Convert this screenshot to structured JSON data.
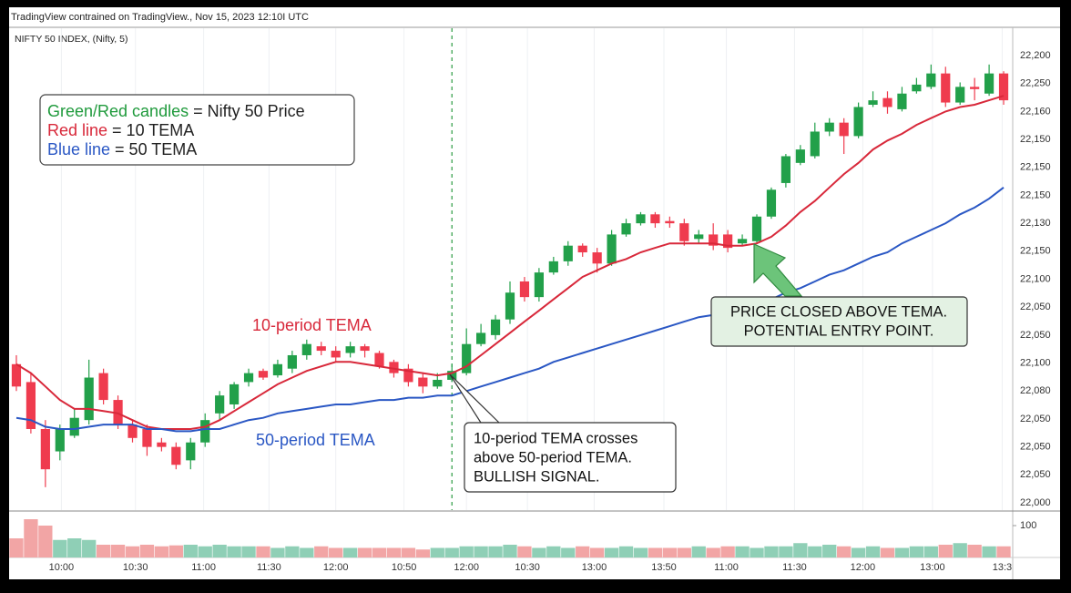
{
  "chart_data": {
    "type": "candlestick",
    "header": "TradingView contrained on TradingView., Nov 15, 2023 12:10I UTC",
    "symbol": "NIFTY 50 INDEX, (Nifty, 5)",
    "ylim": [
      22000,
      22200
    ],
    "price_axis_labels": [
      "22,200",
      "22,250",
      "22,160",
      "22,150",
      "22,150",
      "22,150",
      "22,130",
      "22,150",
      "22,100",
      "22,050",
      "22,050",
      "22,100",
      "22,080",
      "22,050",
      "22,050",
      "22,050",
      "22,000"
    ],
    "xlim": [
      -0.5,
      68.5
    ],
    "xticks": [
      {
        "value": 3.1,
        "label": "10:00"
      },
      {
        "value": 8.2,
        "label": "10:30"
      },
      {
        "value": 12.9,
        "label": "11:00"
      },
      {
        "value": 17.4,
        "label": "11:30"
      },
      {
        "value": 22,
        "label": "12:00"
      },
      {
        "value": 26.7,
        "label": "10:50"
      },
      {
        "value": 31,
        "label": "12:00"
      },
      {
        "value": 35.2,
        "label": "10:30"
      },
      {
        "value": 39.8,
        "label": "13:00"
      },
      {
        "value": 44.6,
        "label": "13:50"
      },
      {
        "value": 48.9,
        "label": "11:00"
      },
      {
        "value": 53.6,
        "label": "11:30"
      },
      {
        "value": 58.3,
        "label": "12:00"
      },
      {
        "value": 63.1,
        "label": "13:00"
      },
      {
        "value": 67.9,
        "label": "13:3"
      }
    ],
    "up_color": "#22a04a",
    "down_color": "#ef3b4e",
    "candles": {
      "open": [
        22062,
        22054,
        22033,
        22023,
        22030,
        22037,
        22058,
        22046,
        22035,
        22033,
        22027,
        22025,
        22019,
        22027,
        22040,
        22044,
        22054,
        22059,
        22057,
        22060,
        22066,
        22070,
        22068,
        22067,
        22070,
        22067,
        22063,
        22060,
        22056,
        22052,
        22055,
        22058,
        22071,
        22075,
        22082,
        22099,
        22092,
        22103,
        22108,
        22115,
        22112,
        22107,
        22120,
        22125,
        22129,
        22126,
        22125,
        22118,
        22120,
        22120,
        22116,
        22117,
        22128,
        22143,
        22152,
        22155,
        22166,
        22170,
        22164,
        22178,
        22181,
        22176,
        22184,
        22186,
        22192,
        22179,
        22186,
        22183,
        22192
      ],
      "high": [
        22066,
        22058,
        22037,
        22035,
        22042,
        22064,
        22060,
        22048,
        22037,
        22035,
        22029,
        22027,
        22029,
        22040,
        22050,
        22054,
        22060,
        22060,
        22064,
        22068,
        22073,
        22072,
        22070,
        22072,
        22071,
        22068,
        22064,
        22062,
        22058,
        22058,
        22062,
        22078,
        22080,
        22084,
        22099,
        22101,
        22105,
        22110,
        22117,
        22116,
        22114,
        22122,
        22127,
        22130,
        22130,
        22128,
        22127,
        22122,
        22125,
        22122,
        22120,
        22129,
        22141,
        22156,
        22160,
        22170,
        22172,
        22172,
        22179,
        22184,
        22184,
        22186,
        22190,
        22196,
        22195,
        22188,
        22190,
        22196,
        22193
      ],
      "low": [
        22050,
        22031,
        22007,
        22019,
        22029,
        22035,
        22044,
        22033,
        22027,
        22021,
        22023,
        22015,
        22015,
        22025,
        22037,
        22042,
        22052,
        22055,
        22056,
        22058,
        22064,
        22066,
        22063,
        22065,
        22065,
        22060,
        22056,
        22052,
        22049,
        22051,
        22054,
        22057,
        22070,
        22073,
        22080,
        22090,
        22090,
        22102,
        22106,
        22110,
        22103,
        22106,
        22119,
        22124,
        22123,
        22123,
        22115,
        22116,
        22113,
        22112,
        22115,
        22116,
        22127,
        22141,
        22151,
        22154,
        22164,
        22156,
        22163,
        22177,
        22174,
        22175,
        22183,
        22185,
        22177,
        22178,
        22180,
        22182,
        22178
      ],
      "close": [
        22052,
        22033,
        22015,
        22033,
        22038,
        22056,
        22046,
        22035,
        22029,
        22025,
        22025,
        22017,
        22027,
        22037,
        22048,
        22053,
        22058,
        22056,
        22062,
        22066,
        22071,
        22068,
        22065,
        22070,
        22068,
        22061,
        22058,
        22054,
        22052,
        22055,
        22059,
        22071,
        22076,
        22082,
        22094,
        22092,
        22103,
        22108,
        22115,
        22112,
        22107,
        22120,
        22125,
        22129,
        22125,
        22125,
        22117,
        22120,
        22115,
        22114,
        22118,
        22128,
        22140,
        22155,
        22158,
        22166,
        22170,
        22164,
        22177,
        22180,
        22177,
        22183,
        22187,
        22192,
        22179,
        22186,
        22185,
        22192,
        22180
      ]
    },
    "lines": [
      {
        "name": "10-period TEMA",
        "color": "#d8283a",
        "values": [
          22062,
          22058,
          22052,
          22046,
          22042,
          22042,
          22041,
          22040,
          22037,
          22034,
          22033,
          22033,
          22033,
          22034,
          22037,
          22041,
          22045,
          22049,
          22053,
          22056,
          22059,
          22061,
          22063,
          22063,
          22062,
          22061,
          22060,
          22059,
          22058,
          22057,
          22058,
          22061,
          22066,
          22071,
          22076,
          22081,
          22086,
          22091,
          22096,
          22101,
          22104,
          22107,
          22109,
          22112,
          22114,
          22116,
          22116,
          22116,
          22116,
          22115,
          22115,
          22116,
          22119,
          22124,
          22130,
          22135,
          22141,
          22147,
          22152,
          22158,
          22162,
          22165,
          22169,
          22172,
          22175,
          22177,
          22178,
          22180,
          22182
        ]
      },
      {
        "name": "50-period TEMA",
        "color": "#2a57c4",
        "values": [
          22038,
          22037,
          22034,
          22033,
          22033,
          22034,
          22035,
          22035,
          22035,
          22033,
          22033,
          22032,
          22032,
          22033,
          22033,
          22035,
          22037,
          22038,
          22040,
          22041,
          22042,
          22043,
          22044,
          22044,
          22045,
          22046,
          22046,
          22047,
          22047,
          22048,
          22048,
          22050,
          22052,
          22054,
          22056,
          22058,
          22060,
          22063,
          22065,
          22067,
          22069,
          22071,
          22073,
          22075,
          22077,
          22079,
          22081,
          22083,
          22084,
          22086,
          22088,
          22089,
          22091,
          22094,
          22096,
          22099,
          22102,
          22104,
          22107,
          22110,
          22112,
          22116,
          22119,
          22122,
          22125,
          22129,
          22132,
          22136,
          22141
        ]
      }
    ],
    "crossover_x": 30,
    "volume": [
      60,
      120,
      100,
      55,
      60,
      55,
      40,
      40,
      35,
      40,
      35,
      38,
      40,
      35,
      40,
      35,
      35,
      35,
      30,
      35,
      30,
      35,
      30,
      30,
      30,
      30,
      30,
      30,
      25,
      30,
      30,
      35,
      35,
      35,
      40,
      35,
      30,
      35,
      30,
      35,
      30,
      30,
      35,
      30,
      30,
      30,
      30,
      35,
      30,
      35,
      35,
      30,
      35,
      35,
      45,
      35,
      40,
      35,
      30,
      35,
      30,
      30,
      35,
      35,
      40,
      45,
      40,
      35,
      35
    ],
    "volume_ylim": [
      0,
      140
    ],
    "volume_yticks": [
      100
    ],
    "volume_up_color": "#8fcfb6",
    "volume_down_color": "#f2a5a5",
    "legend": [
      {
        "key": "Green/Red candles",
        "text": "= Nifty 50 Price",
        "color": "#1f9a3c"
      },
      {
        "key": "Red line",
        "text": "= 10 TEMA",
        "color": "#d8283a"
      },
      {
        "key": "Blue line",
        "text": "= 50 TEMA",
        "color": "#2a57c4"
      }
    ],
    "annotations": [
      {
        "lines": [
          "10-period TEMA crosses",
          "above 50-period TEMA.",
          "BULLISH SIGNAL."
        ]
      },
      {
        "lines": [
          "PRICE CLOSED ABOVE TEMA.",
          "POTENTIAL ENTRY POINT."
        ]
      }
    ]
  }
}
